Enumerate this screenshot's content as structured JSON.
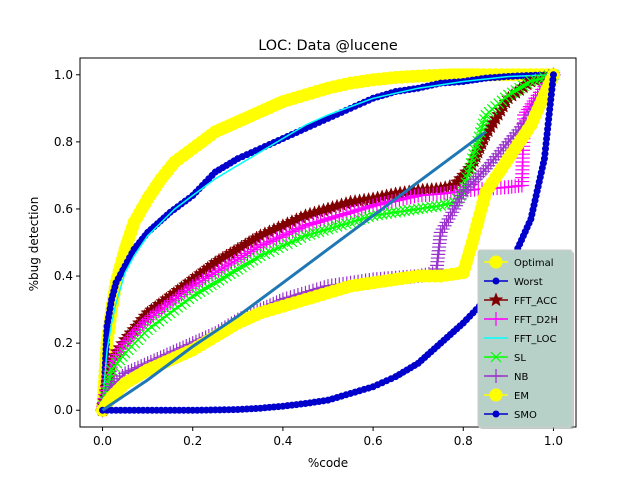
{
  "chart_data": {
    "type": "line",
    "title": "LOC: Data @lucene",
    "xlabel": "%code",
    "ylabel": "%bug detection",
    "xlim": [
      -0.05,
      1.05
    ],
    "ylim": [
      -0.05,
      1.05
    ],
    "xticks": [
      "0.0",
      "0.2",
      "0.4",
      "0.6",
      "0.8",
      "1.0"
    ],
    "yticks": [
      "0.0",
      "0.2",
      "0.4",
      "0.6",
      "0.8",
      "1.0"
    ],
    "xtick_values": [
      0,
      0.2,
      0.4,
      0.6,
      0.8,
      1.0
    ],
    "ytick_values": [
      0,
      0.2,
      0.4,
      0.6,
      0.8,
      1.0
    ],
    "grid": false,
    "legend_position": "lower-right",
    "series": [
      {
        "name": "Optimal",
        "color": "#ffff00",
        "marker": "circle-large",
        "x": [
          0,
          0.005,
          0.01,
          0.02,
          0.03,
          0.05,
          0.07,
          0.1,
          0.13,
          0.16,
          0.2,
          0.25,
          0.3,
          0.35,
          0.4,
          0.45,
          0.5,
          0.55,
          0.6,
          0.65,
          0.7,
          0.75,
          0.78,
          0.8,
          0.82,
          1.0
        ],
        "y": [
          0,
          0.1,
          0.2,
          0.3,
          0.38,
          0.48,
          0.56,
          0.63,
          0.69,
          0.74,
          0.78,
          0.83,
          0.86,
          0.89,
          0.92,
          0.94,
          0.96,
          0.975,
          0.985,
          0.992,
          0.996,
          0.999,
          1.0,
          1.0,
          1.0,
          1.0
        ]
      },
      {
        "name": "Worst",
        "color": "#0000cc",
        "marker": "circle-small",
        "x": [
          0,
          0.005,
          0.01,
          0.02,
          0.03,
          0.05,
          0.07,
          0.1,
          0.15,
          0.2,
          0.25,
          0.3,
          0.35,
          0.4,
          0.45,
          0.5,
          0.55,
          0.6,
          0.65,
          0.7,
          0.75,
          0.8,
          0.85,
          0.9,
          0.95,
          1.0
        ],
        "y": [
          0,
          0.1,
          0.25,
          0.33,
          0.38,
          0.43,
          0.48,
          0.53,
          0.59,
          0.64,
          0.71,
          0.75,
          0.78,
          0.81,
          0.84,
          0.87,
          0.9,
          0.93,
          0.95,
          0.96,
          0.975,
          0.98,
          0.99,
          0.995,
          0.998,
          1.0
        ]
      },
      {
        "name": "FFT_ACC",
        "color": "#800000",
        "marker": "star",
        "x": [
          0,
          0.02,
          0.05,
          0.1,
          0.15,
          0.2,
          0.25,
          0.3,
          0.35,
          0.4,
          0.45,
          0.5,
          0.55,
          0.6,
          0.65,
          0.7,
          0.75,
          0.78,
          0.8,
          0.82,
          0.85,
          0.9,
          0.95,
          1.0
        ],
        "y": [
          0,
          0.15,
          0.21,
          0.29,
          0.34,
          0.39,
          0.44,
          0.48,
          0.52,
          0.55,
          0.58,
          0.6,
          0.62,
          0.63,
          0.645,
          0.655,
          0.66,
          0.67,
          0.7,
          0.73,
          0.82,
          0.93,
          0.98,
          1.0
        ]
      },
      {
        "name": "FFT_D2H",
        "color": "#ff00ff",
        "marker": "plus",
        "x": [
          0,
          0.02,
          0.05,
          0.1,
          0.15,
          0.2,
          0.25,
          0.3,
          0.35,
          0.4,
          0.45,
          0.5,
          0.55,
          0.6,
          0.65,
          0.7,
          0.75,
          0.78,
          0.8,
          0.85,
          0.9,
          0.93,
          0.935,
          0.96,
          1.0
        ],
        "y": [
          0,
          0.14,
          0.2,
          0.27,
          0.32,
          0.37,
          0.41,
          0.45,
          0.49,
          0.52,
          0.55,
          0.57,
          0.59,
          0.61,
          0.625,
          0.64,
          0.645,
          0.65,
          0.655,
          0.66,
          0.665,
          0.67,
          0.88,
          0.93,
          1.0
        ]
      },
      {
        "name": "FFT_LOC",
        "color": "#00ffff",
        "marker": "line",
        "x": [
          0,
          0.005,
          0.01,
          0.02,
          0.03,
          0.05,
          0.07,
          0.1,
          0.13,
          0.16,
          0.2,
          0.25,
          0.3,
          0.35,
          0.4,
          0.45,
          0.5,
          0.6,
          0.7,
          0.8,
          0.9,
          1.0
        ],
        "y": [
          0,
          0.1,
          0.18,
          0.26,
          0.32,
          0.41,
          0.46,
          0.52,
          0.56,
          0.6,
          0.64,
          0.69,
          0.73,
          0.77,
          0.81,
          0.85,
          0.88,
          0.93,
          0.96,
          0.98,
          0.995,
          1.0
        ]
      },
      {
        "name": "SL",
        "color": "#00ff00",
        "marker": "x",
        "x": [
          0,
          0.02,
          0.05,
          0.1,
          0.15,
          0.2,
          0.25,
          0.3,
          0.35,
          0.4,
          0.45,
          0.5,
          0.55,
          0.6,
          0.65,
          0.7,
          0.75,
          0.78,
          0.8,
          0.82,
          0.85,
          0.9,
          0.95,
          1.0
        ],
        "y": [
          0,
          0.12,
          0.17,
          0.24,
          0.29,
          0.34,
          0.38,
          0.42,
          0.46,
          0.49,
          0.52,
          0.54,
          0.56,
          0.58,
          0.59,
          0.6,
          0.61,
          0.62,
          0.65,
          0.75,
          0.88,
          0.94,
          0.98,
          1.0
        ]
      },
      {
        "name": "NB",
        "color": "#9933cc",
        "marker": "plus",
        "x": [
          0,
          0.02,
          0.05,
          0.1,
          0.15,
          0.2,
          0.25,
          0.3,
          0.35,
          0.4,
          0.45,
          0.5,
          0.55,
          0.6,
          0.65,
          0.7,
          0.74,
          0.75,
          0.78,
          0.8,
          0.85,
          0.9,
          0.95,
          1.0
        ],
        "y": [
          0,
          0.07,
          0.11,
          0.14,
          0.17,
          0.2,
          0.23,
          0.27,
          0.3,
          0.33,
          0.35,
          0.37,
          0.38,
          0.39,
          0.395,
          0.4,
          0.41,
          0.53,
          0.6,
          0.65,
          0.72,
          0.8,
          0.88,
          1.0
        ]
      },
      {
        "name": "EM",
        "color": "#ffff00",
        "marker": "circle-large",
        "x": [
          0,
          0.02,
          0.05,
          0.1,
          0.15,
          0.2,
          0.25,
          0.3,
          0.35,
          0.4,
          0.45,
          0.5,
          0.55,
          0.6,
          0.65,
          0.7,
          0.75,
          0.8,
          0.82,
          0.85,
          0.9,
          0.95,
          1.0
        ],
        "y": [
          0,
          0.04,
          0.08,
          0.12,
          0.15,
          0.18,
          0.22,
          0.26,
          0.29,
          0.31,
          0.33,
          0.35,
          0.37,
          0.38,
          0.39,
          0.4,
          0.4,
          0.41,
          0.5,
          0.65,
          0.75,
          0.85,
          1.0
        ]
      },
      {
        "name": "SMO",
        "color": "#0000cc",
        "marker": "circle-small",
        "x": [
          0,
          0.05,
          0.1,
          0.15,
          0.2,
          0.21,
          0.3,
          0.35,
          0.4,
          0.45,
          0.5,
          0.55,
          0.6,
          0.65,
          0.7,
          0.75,
          0.8,
          0.85,
          0.9,
          0.95,
          0.98,
          1.0
        ],
        "y": [
          0,
          0,
          0,
          0,
          0,
          0,
          0.002,
          0.006,
          0.012,
          0.02,
          0.03,
          0.05,
          0.07,
          0.1,
          0.14,
          0.2,
          0.26,
          0.33,
          0.42,
          0.57,
          0.75,
          1.0
        ]
      },
      {
        "name": "",
        "color": "#1f77b4",
        "marker": "none",
        "x": [
          0,
          0.1,
          0.2,
          0.3,
          0.4,
          0.5,
          0.6,
          0.7,
          0.8,
          0.85
        ],
        "y": [
          0,
          0.09,
          0.19,
          0.28,
          0.38,
          0.48,
          0.58,
          0.68,
          0.78,
          0.83
        ]
      }
    ]
  }
}
